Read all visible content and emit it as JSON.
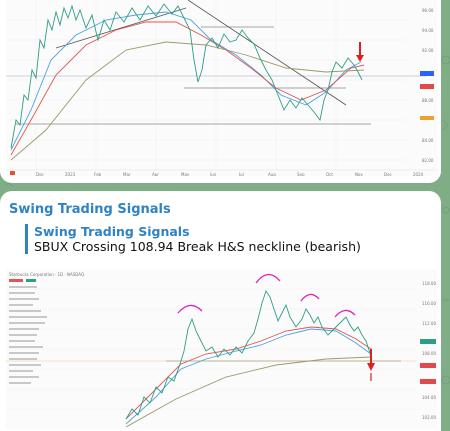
{
  "colors": {
    "chat_background": "#7fae86",
    "bubble": "#ffffff",
    "accent_blue": "#2f83c4",
    "up_candle": "#2e9e86",
    "down_candle": "#e04a4a",
    "pattern_arc": "#e020c0",
    "signal_arrow": "#e02020"
  },
  "message_top": {
    "chart1": {
      "x_axis_labels": [
        "Dec",
        "2023",
        "Feb",
        "Mar",
        "Apr",
        "May",
        "Jun",
        "Jul",
        "Aug",
        "Sep",
        "Oct",
        "Nov",
        "Dec",
        "2024"
      ]
    }
  },
  "message_bottom": {
    "sender": "Swing Trading Signals",
    "reply": {
      "title": "Swing Trading Signals",
      "text": "SBUX Crossing 108.94 Break H&S neckline (bearish)"
    },
    "chart2": {
      "header": "Starbucks Corporation · 1D · NASDAQ"
    }
  }
}
